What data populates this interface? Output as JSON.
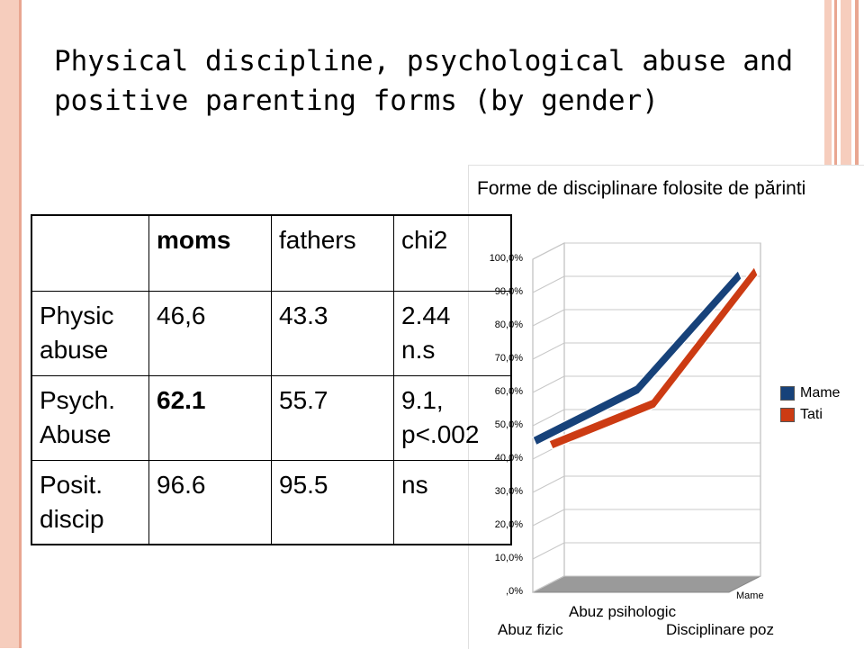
{
  "slide": {
    "title_line1": "Physical discipline, psychological abuse and",
    "title_line2": "positive parenting forms (by gender)"
  },
  "decor": {
    "left_bar_color": "#f6cdbd",
    "right_stripe_colors": [
      "#f6cdbd",
      "#e9a691",
      "#f6cdbd",
      "#e9a691"
    ]
  },
  "table": {
    "header": [
      "",
      "moms",
      "fathers",
      "chi2"
    ],
    "rows": [
      {
        "label": [
          "Physic",
          "abuse"
        ],
        "moms": "46,6",
        "fathers": "43.3",
        "chi2": [
          "2.44",
          "n.s"
        ]
      },
      {
        "label": [
          "Psych.",
          "Abuse"
        ],
        "moms": "62.1",
        "fathers": "55.7",
        "chi2": [
          "9.1,",
          "p<.002"
        ]
      },
      {
        "label": [
          "Posit.",
          "discip"
        ],
        "moms": "96.6",
        "fathers": "95.5",
        "chi2": [
          "ns"
        ]
      }
    ]
  },
  "chart_data": {
    "type": "line",
    "title": "Forme de disciplinare folosite de părinti",
    "categories": [
      "Abuz fizic",
      "Abuz psihologic",
      "Disciplinare poz"
    ],
    "series": [
      {
        "name": "Mame",
        "color": "#17427a",
        "values": [
          46.6,
          62.1,
          96.6
        ]
      },
      {
        "name": "Tati",
        "color": "#cc3b13",
        "values": [
          43.3,
          55.7,
          95.5
        ]
      }
    ],
    "y_tick_labels": [
      "100,0%",
      "90,0%",
      "80,0%",
      "70,0%",
      "60,0%",
      "50,0%",
      "40,0%",
      "30,0%",
      "20,0%",
      "10,0%",
      ",0%"
    ],
    "ylim": [
      0,
      100
    ],
    "depth_label": "Mame",
    "legend_position": "right",
    "grid": true,
    "style": "3d"
  }
}
